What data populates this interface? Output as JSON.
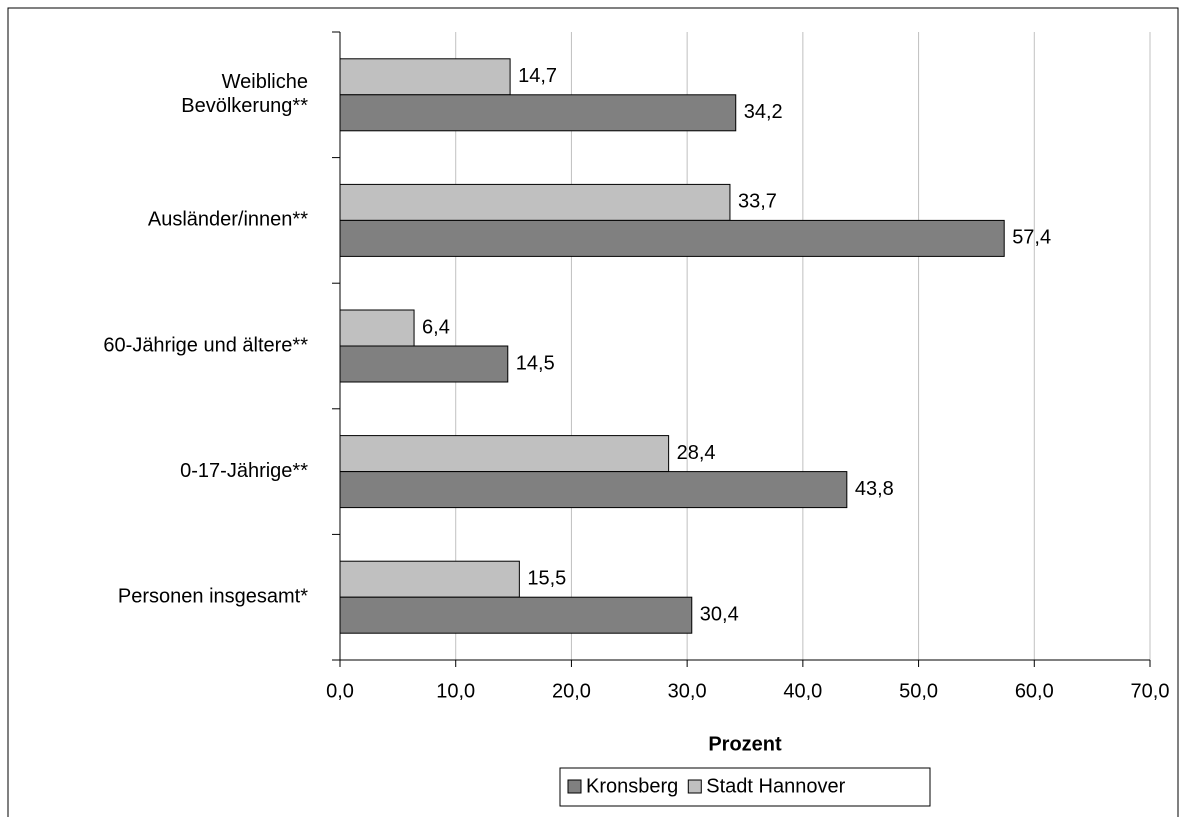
{
  "chart_data": {
    "type": "hbar",
    "categories": [
      "Weibliche\nBevölkerung**",
      "Ausländer/innen**",
      "60-Jährige und ältere**",
      "0-17-Jährige**",
      "Personen insgesamt*"
    ],
    "series": [
      {
        "name": "Stadt Hannover",
        "color": "#c0c0c0",
        "values": [
          14.7,
          33.7,
          6.4,
          28.4,
          15.5
        ],
        "value_labels": [
          "14,7",
          "33,7",
          "6,4",
          "28,4",
          "15,5"
        ]
      },
      {
        "name": "Kronsberg",
        "color": "#808080",
        "values": [
          34.2,
          57.4,
          14.5,
          43.8,
          30.4
        ],
        "value_labels": [
          "34,2",
          "57,4",
          "14,5",
          "43,8",
          "30,4"
        ]
      }
    ],
    "xlabel": "Prozent",
    "xlim": [
      0,
      70
    ],
    "xticks": [
      {
        "value": 0,
        "label": "0,0"
      },
      {
        "value": 10,
        "label": "10,0"
      },
      {
        "value": 20,
        "label": "20,0"
      },
      {
        "value": 30,
        "label": "30,0"
      },
      {
        "value": 40,
        "label": "40,0"
      },
      {
        "value": 50,
        "label": "50,0"
      },
      {
        "value": 60,
        "label": "60,0"
      },
      {
        "value": 70,
        "label": "70,0"
      }
    ],
    "grid": true,
    "legend": "bottom"
  }
}
